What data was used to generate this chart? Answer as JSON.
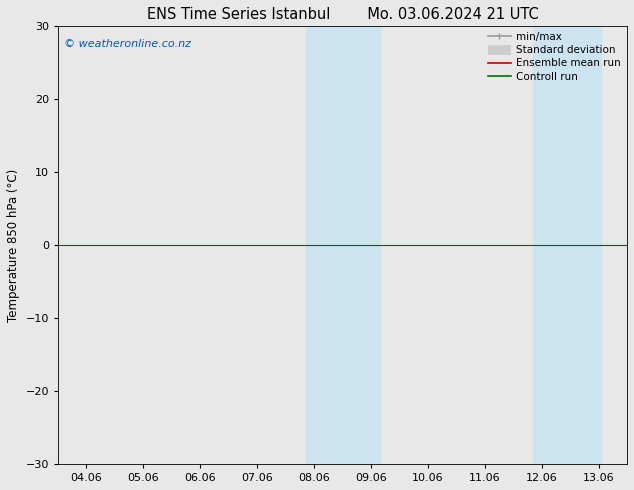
{
  "title_left": "ENS Time Series Istanbul",
  "title_right": "Mo. 03.06.2024 21 UTC",
  "ylabel": "Temperature 850 hPa (°C)",
  "copyright": "© weatheronline.co.nz",
  "ylim": [
    -30,
    30
  ],
  "yticks": [
    -30,
    -20,
    -10,
    0,
    10,
    20,
    30
  ],
  "x_labels": [
    "04.06",
    "05.06",
    "06.06",
    "07.06",
    "08.06",
    "09.06",
    "10.06",
    "11.06",
    "12.06",
    "13.06"
  ],
  "x_positions": [
    0,
    1,
    2,
    3,
    4,
    5,
    6,
    7,
    8,
    9
  ],
  "xlim": [
    -0.5,
    9.5
  ],
  "shaded_bands": [
    {
      "x_start": 3.85,
      "x_end": 5.15
    },
    {
      "x_start": 7.85,
      "x_end": 9.05
    }
  ],
  "hline_y": 0,
  "hline_color": "#006600",
  "shaded_color": "#cce4f0",
  "shaded_alpha": 1.0,
  "legend_items": [
    {
      "label": "min/max",
      "color": "#999999",
      "linestyle": "-",
      "linewidth": 1.2
    },
    {
      "label": "Standard deviation",
      "color": "#cccccc",
      "linestyle": "-",
      "linewidth": 7
    },
    {
      "label": "Ensemble mean run",
      "color": "#cc0000",
      "linestyle": "-",
      "linewidth": 1.2
    },
    {
      "label": "Controll run",
      "color": "#007700",
      "linestyle": "-",
      "linewidth": 1.2
    }
  ],
  "bg_color": "#e8e8e8",
  "plot_bg_color": "#e8e8e8",
  "title_fontsize": 10.5,
  "label_fontsize": 8.5,
  "tick_fontsize": 8,
  "copyright_fontsize": 8,
  "copyright_color": "#0055cc"
}
